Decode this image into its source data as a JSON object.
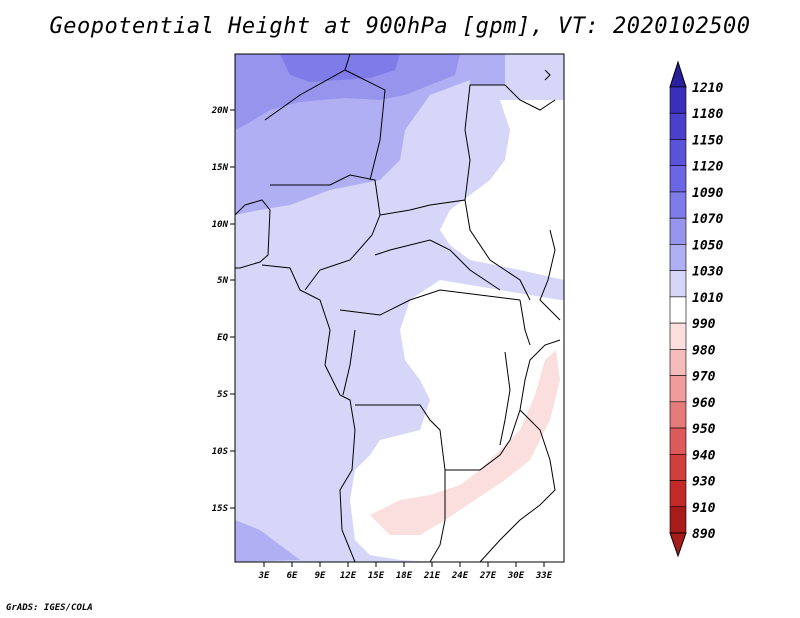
{
  "title": "Geopotential Height at 900hPa [gpm], VT: 2020102500",
  "credit": "GrADS: IGES/COLA",
  "map": {
    "lat_ticks": [
      "20N",
      "15N",
      "10N",
      "5N",
      "EQ",
      "5S",
      "10S",
      "15S"
    ],
    "lon_ticks": [
      "3E",
      "6E",
      "9E",
      "12E",
      "15E",
      "18E",
      "21E",
      "24E",
      "27E",
      "30E",
      "33E"
    ]
  },
  "colorbar": {
    "labels": [
      "1210",
      "1180",
      "1150",
      "1120",
      "1090",
      "1070",
      "1050",
      "1030",
      "1010",
      "990",
      "980",
      "970",
      "960",
      "950",
      "940",
      "930",
      "910",
      "890"
    ],
    "colors": [
      "#2a1f9e",
      "#3a2fb8",
      "#4a40cc",
      "#5a52d8",
      "#6c66e2",
      "#7f7be8",
      "#9794ee",
      "#b1aff3",
      "#d6d6f8",
      "#ffffff",
      "#fbdede",
      "#f5bcbc",
      "#ee9c9c",
      "#e67b7b",
      "#dd5a5a",
      "#d13e3e",
      "#c22a2a",
      "#a81b1b"
    ]
  }
}
